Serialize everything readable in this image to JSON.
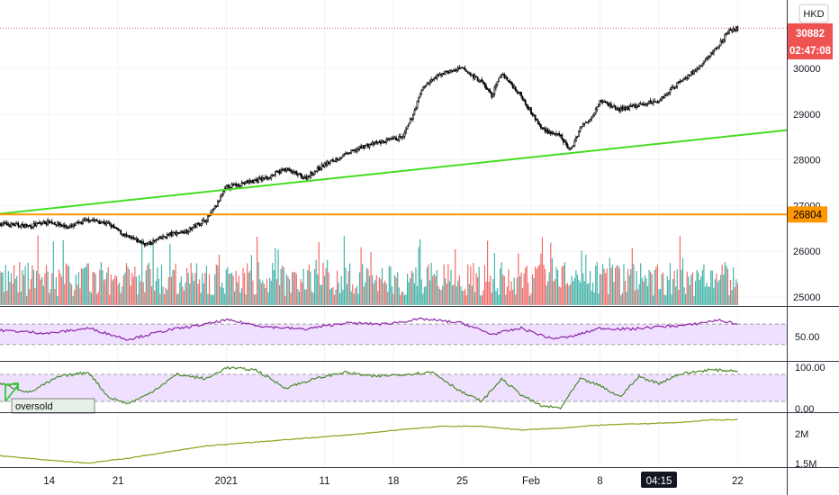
{
  "currency_label": "HKD",
  "price_axis": {
    "ticks": [
      "30000",
      "29000",
      "28000",
      "27000",
      "26000",
      "25000"
    ],
    "min": 24800,
    "max": 31500
  },
  "time_axis": {
    "labels": [
      {
        "text": "14",
        "day": 5
      },
      {
        "text": "21",
        "day": 12
      },
      {
        "text": "2021",
        "day": 23
      },
      {
        "text": "11",
        "day": 33
      },
      {
        "text": "18",
        "day": 40
      },
      {
        "text": "25",
        "day": 47
      },
      {
        "text": "Feb",
        "day": 54
      },
      {
        "text": "8",
        "day": 61
      },
      {
        "text": "04:15",
        "day": 67
      },
      {
        "text": "22",
        "day": 75
      }
    ],
    "day_range": [
      0,
      80
    ]
  },
  "last_price": {
    "value": "30882",
    "level": 30882,
    "color": "#ef5350"
  },
  "countdown": {
    "value": "02:47:08"
  },
  "horizontal_line": {
    "value": "26804",
    "level": 26804,
    "color": "#ff9800"
  },
  "trend_line": {
    "start": {
      "day": 0,
      "price": 26820
    },
    "end": {
      "day": 80,
      "price": 28650
    },
    "color": "#44dd22"
  },
  "rsi_panel": {
    "tick": "50.00",
    "range": [
      0,
      100
    ],
    "upper": 70,
    "lower": 30,
    "line_color": "#8e24aa",
    "band_color": "#f0e0ff"
  },
  "stoch_panel": {
    "ticks": [
      "100.00",
      "0.00"
    ],
    "range": [
      0,
      100
    ],
    "upper": 80,
    "lower": 20,
    "line_color": "#4a8a2a",
    "band_color": "#f0e0ff",
    "signal_label": "oversold"
  },
  "obv_panel": {
    "ticks": [
      "2M",
      "1.5M"
    ],
    "range": [
      1.45,
      2.3
    ],
    "line_color": "#9aa628"
  },
  "colors": {
    "up": "#26a69a",
    "down": "#ef5350",
    "candle": "#000000",
    "grid": "#f0f3fa"
  },
  "chart_data": {
    "type": "candlestick",
    "x_unit": "trading days from start",
    "anchors_close": [
      [
        0,
        26600
      ],
      [
        3,
        26550
      ],
      [
        5,
        26650
      ],
      [
        7,
        26520
      ],
      [
        9,
        26700
      ],
      [
        11,
        26600
      ],
      [
        13,
        26300
      ],
      [
        15,
        26150
      ],
      [
        17,
        26350
      ],
      [
        19,
        26450
      ],
      [
        21,
        26700
      ],
      [
        22,
        27000
      ],
      [
        23,
        27400
      ],
      [
        25,
        27500
      ],
      [
        27,
        27600
      ],
      [
        29,
        27800
      ],
      [
        31,
        27600
      ],
      [
        33,
        27900
      ],
      [
        35,
        28100
      ],
      [
        37,
        28300
      ],
      [
        39,
        28400
      ],
      [
        41,
        28500
      ],
      [
        42,
        29000
      ],
      [
        43,
        29600
      ],
      [
        45,
        29900
      ],
      [
        47,
        30000
      ],
      [
        49,
        29700
      ],
      [
        50,
        29400
      ],
      [
        51,
        29900
      ],
      [
        53,
        29400
      ],
      [
        55,
        28700
      ],
      [
        57,
        28500
      ],
      [
        58,
        28200
      ],
      [
        59,
        28700
      ],
      [
        60,
        28900
      ],
      [
        61,
        29300
      ],
      [
        63,
        29100
      ],
      [
        65,
        29200
      ],
      [
        67,
        29300
      ],
      [
        69,
        29700
      ],
      [
        71,
        30000
      ],
      [
        73,
        30500
      ],
      [
        74,
        30800
      ],
      [
        75,
        30882
      ]
    ],
    "rsi_anchors": [
      [
        0,
        58
      ],
      [
        5,
        52
      ],
      [
        9,
        62
      ],
      [
        13,
        40
      ],
      [
        17,
        58
      ],
      [
        21,
        70
      ],
      [
        23,
        78
      ],
      [
        27,
        65
      ],
      [
        31,
        60
      ],
      [
        35,
        72
      ],
      [
        39,
        70
      ],
      [
        43,
        80
      ],
      [
        47,
        72
      ],
      [
        50,
        50
      ],
      [
        53,
        62
      ],
      [
        56,
        42
      ],
      [
        58,
        45
      ],
      [
        61,
        62
      ],
      [
        64,
        60
      ],
      [
        67,
        65
      ],
      [
        70,
        68
      ],
      [
        73,
        78
      ],
      [
        75,
        70
      ]
    ],
    "stoch_anchors": [
      [
        0,
        60
      ],
      [
        3,
        40
      ],
      [
        6,
        75
      ],
      [
        9,
        85
      ],
      [
        11,
        30
      ],
      [
        13,
        15
      ],
      [
        15,
        35
      ],
      [
        18,
        80
      ],
      [
        21,
        70
      ],
      [
        23,
        95
      ],
      [
        26,
        90
      ],
      [
        29,
        50
      ],
      [
        32,
        70
      ],
      [
        35,
        85
      ],
      [
        38,
        75
      ],
      [
        41,
        80
      ],
      [
        44,
        85
      ],
      [
        47,
        40
      ],
      [
        49,
        20
      ],
      [
        51,
        70
      ],
      [
        53,
        35
      ],
      [
        55,
        10
      ],
      [
        57,
        5
      ],
      [
        59,
        70
      ],
      [
        61,
        55
      ],
      [
        63,
        30
      ],
      [
        65,
        75
      ],
      [
        67,
        60
      ],
      [
        69,
        80
      ],
      [
        72,
        90
      ],
      [
        75,
        88
      ]
    ],
    "obv_anchors": [
      [
        0,
        1.62
      ],
      [
        5,
        1.55
      ],
      [
        9,
        1.5
      ],
      [
        13,
        1.58
      ],
      [
        17,
        1.68
      ],
      [
        21,
        1.78
      ],
      [
        25,
        1.83
      ],
      [
        29,
        1.88
      ],
      [
        33,
        1.93
      ],
      [
        37,
        1.98
      ],
      [
        41,
        2.05
      ],
      [
        45,
        2.1
      ],
      [
        49,
        2.1
      ],
      [
        53,
        2.04
      ],
      [
        57,
        2.07
      ],
      [
        61,
        2.12
      ],
      [
        65,
        2.14
      ],
      [
        69,
        2.16
      ],
      [
        72,
        2.2
      ],
      [
        75,
        2.21
      ]
    ]
  }
}
